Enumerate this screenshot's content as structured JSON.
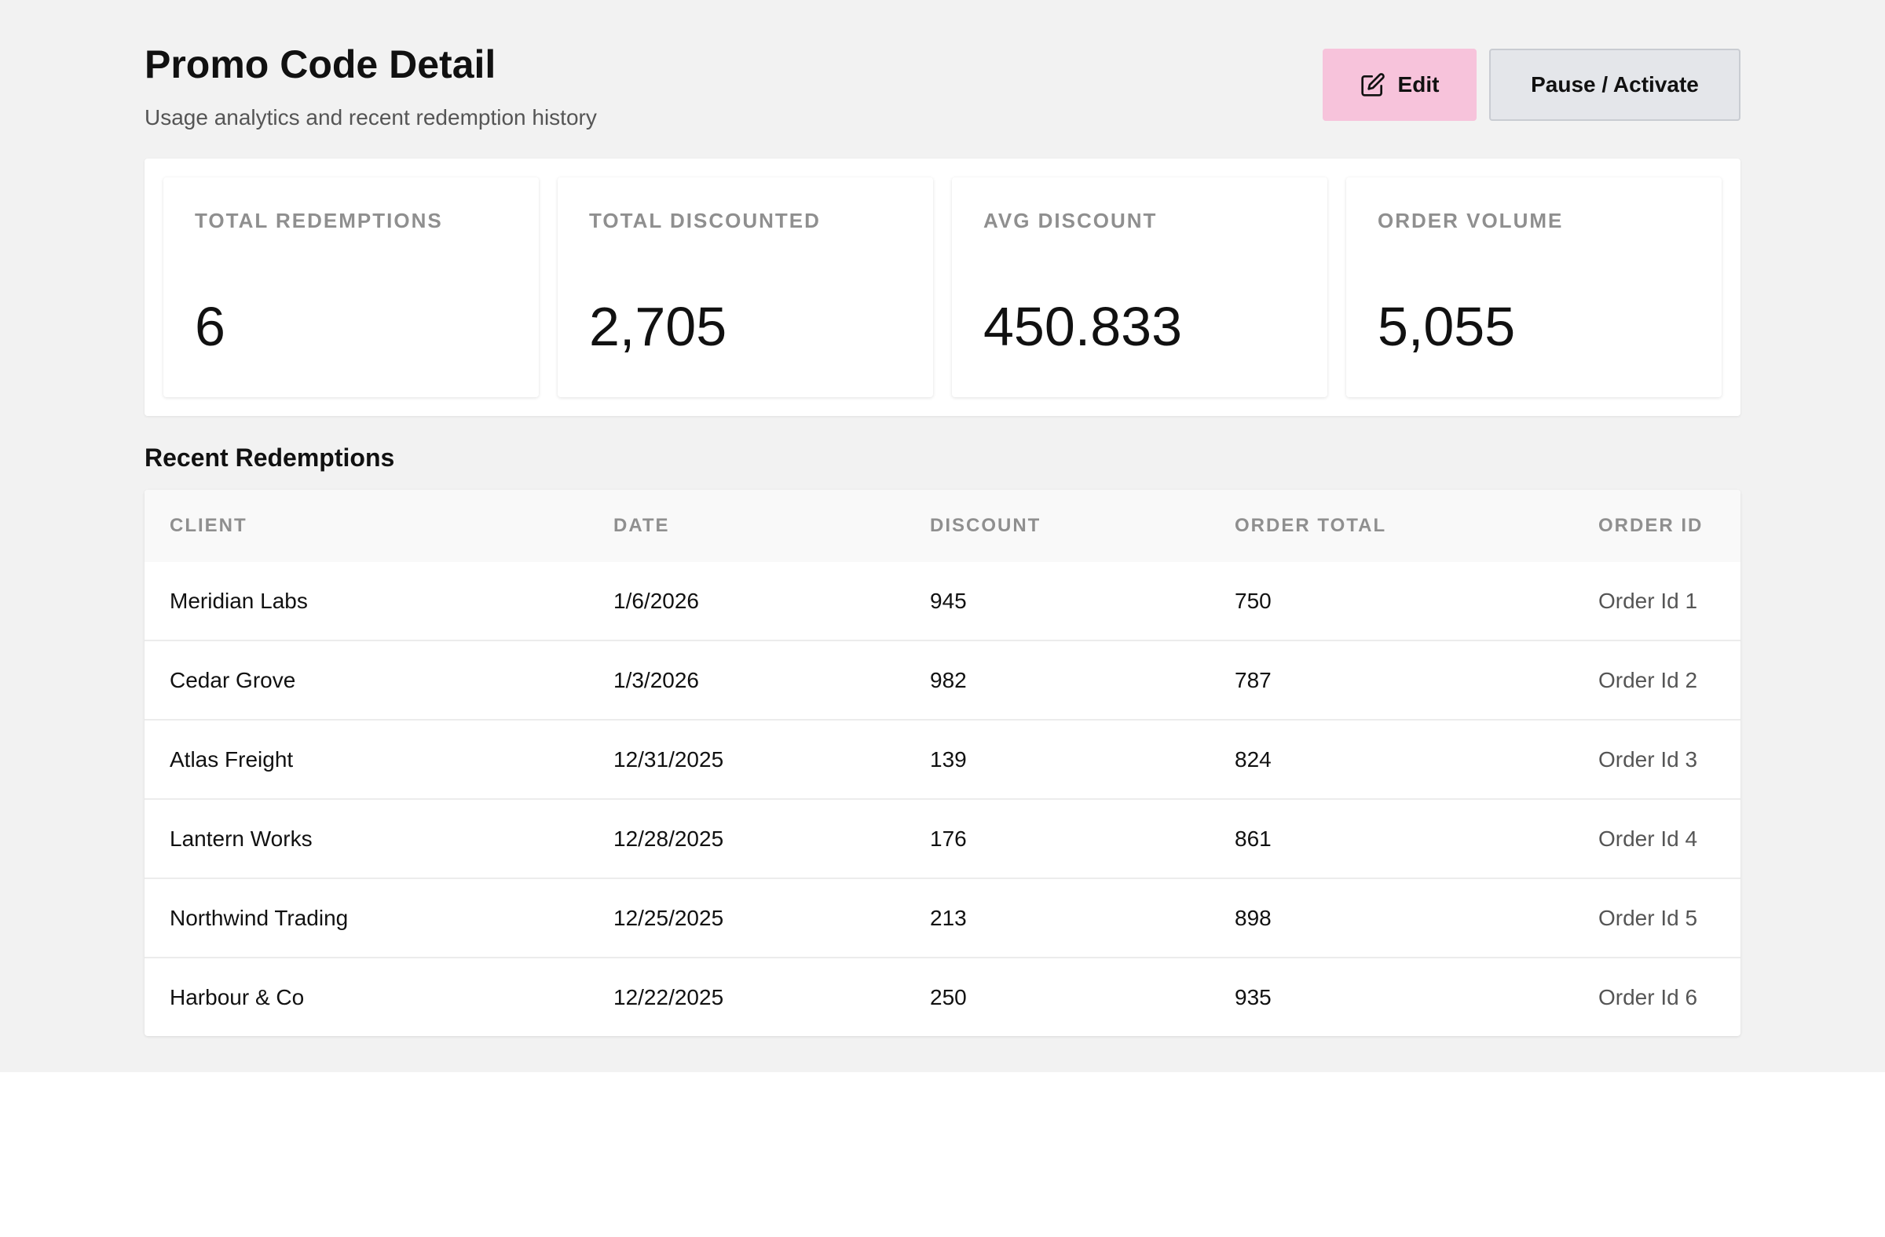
{
  "header": {
    "title": "Promo Code Detail",
    "subtitle": "Usage analytics and recent redemption history",
    "edit_label": "Edit",
    "pause_label": "Pause / Activate"
  },
  "stats": [
    {
      "label": "TOTAL REDEMPTIONS",
      "value": "6"
    },
    {
      "label": "TOTAL DISCOUNTED",
      "value": "2,705"
    },
    {
      "label": "AVG DISCOUNT",
      "value": "450.833"
    },
    {
      "label": "ORDER VOLUME",
      "value": "5,055"
    }
  ],
  "recent": {
    "title": "Recent Redemptions",
    "columns": [
      "CLIENT",
      "DATE",
      "DISCOUNT",
      "ORDER TOTAL",
      "ORDER ID"
    ],
    "rows": [
      {
        "client": "Meridian Labs",
        "date": "1/6/2026",
        "discount": "945",
        "order_total": "750",
        "order_id": "Order Id 1"
      },
      {
        "client": "Cedar Grove",
        "date": "1/3/2026",
        "discount": "982",
        "order_total": "787",
        "order_id": "Order Id 2"
      },
      {
        "client": "Atlas Freight",
        "date": "12/31/2025",
        "discount": "139",
        "order_total": "824",
        "order_id": "Order Id 3"
      },
      {
        "client": "Lantern Works",
        "date": "12/28/2025",
        "discount": "176",
        "order_total": "861",
        "order_id": "Order Id 4"
      },
      {
        "client": "Northwind Trading",
        "date": "12/25/2025",
        "discount": "213",
        "order_total": "898",
        "order_id": "Order Id 5"
      },
      {
        "client": "Harbour & Co",
        "date": "12/22/2025",
        "discount": "250",
        "order_total": "935",
        "order_id": "Order Id 6"
      }
    ]
  },
  "icons": {
    "edit": "pencil-square-icon"
  },
  "colors": {
    "edit_button": "#f7c3db",
    "pause_button": "#e4e6ea",
    "page_background": "#f2f2f2"
  }
}
